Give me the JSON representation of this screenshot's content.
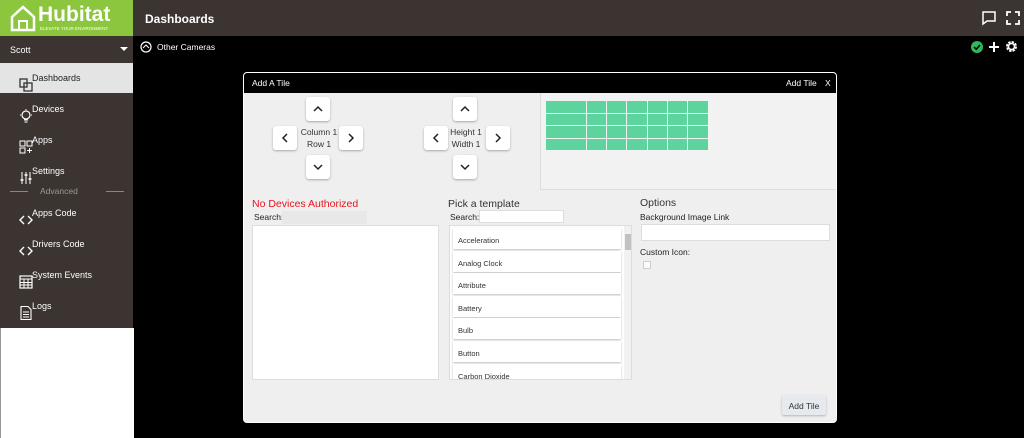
{
  "header": {
    "brand": "Hubitat",
    "tagline": "ELEVATE YOUR ENVIRONMENT",
    "title": "Dashboards"
  },
  "sidebar": {
    "user": "Scott",
    "section": "Advanced",
    "items": [
      "Dashboards",
      "Devices",
      "Apps",
      "Settings",
      "Apps Code",
      "Drivers Code",
      "System Events",
      "Logs"
    ]
  },
  "dashboard": {
    "name": "Other Cameras"
  },
  "modal": {
    "title": "Add A Tile",
    "action": "Add Tile",
    "close": "X",
    "position": {
      "column": "Column 1",
      "row": "Row 1"
    },
    "size": {
      "height": "Height 1",
      "width": "Width 1"
    },
    "devices": {
      "message": "No Devices Authorized",
      "search": "Search:"
    },
    "templates": {
      "heading": "Pick a template",
      "search": "Search:",
      "items": [
        "Acceleration",
        "Analog Clock",
        "Attribute",
        "Battery",
        "Bulb",
        "Button",
        "Carbon Dioxide"
      ]
    },
    "options": {
      "heading": "Options",
      "background": "Background Image Link",
      "icon": "Custom Icon:"
    },
    "submit": "Add Tile"
  }
}
